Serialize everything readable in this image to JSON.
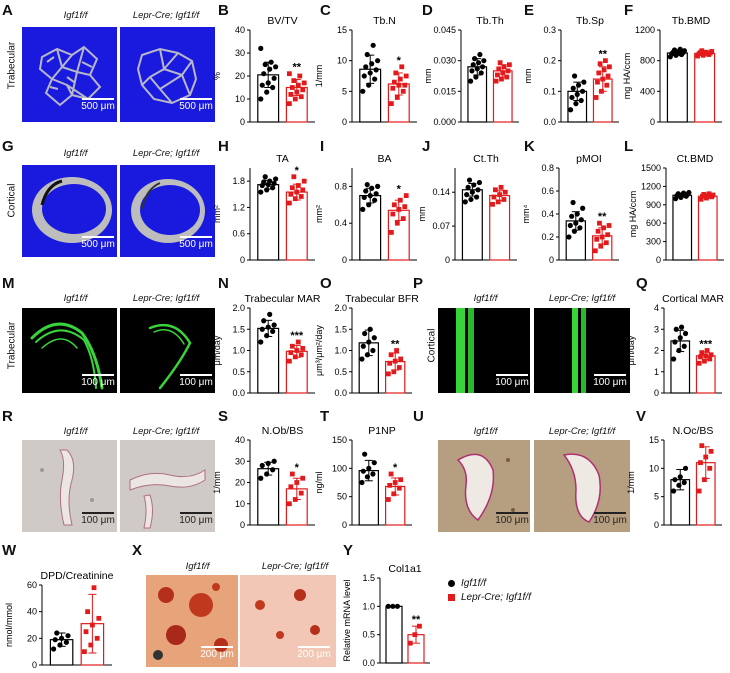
{
  "colors": {
    "wt": "#000000",
    "ko": "#e31a1c",
    "blue_bg": "#1a1adf",
    "green": "#39d439"
  },
  "panels": {
    "A": "A",
    "B": "B",
    "C": "C",
    "D": "D",
    "E": "E",
    "F": "F",
    "G": "G",
    "H": "H",
    "I": "I",
    "J": "J",
    "K": "K",
    "L": "L",
    "M": "M",
    "N": "N",
    "O": "O",
    "P": "P",
    "Q": "Q",
    "R": "R",
    "S": "S",
    "T": "T",
    "U": "U",
    "V": "V",
    "W": "W",
    "X": "X",
    "Y": "Y"
  },
  "groups": {
    "wt": "Igf1f/f",
    "ko": "Lepr-Cre; Igf1f/f"
  },
  "row_labels": {
    "trabecular": "Trabecular",
    "cortical": "Cortical"
  },
  "scales": {
    "s500": "500 μm",
    "s100": "100 μm",
    "s200": "200 μm"
  },
  "legend": {
    "wt": "Igf1f/f",
    "ko": "Lepr-Cre; Igf1f/f"
  },
  "chart_data": [
    {
      "id": "B",
      "type": "bar",
      "title": "BV/TV",
      "ylabel": "%",
      "ylim": [
        0,
        40
      ],
      "ticks": [
        "0",
        "10",
        "20",
        "30",
        "40"
      ],
      "tickvals": [
        0,
        10,
        20,
        30,
        40
      ],
      "sig": "**",
      "series": [
        {
          "values": [
            10,
            13,
            15,
            16,
            17,
            19,
            21,
            23,
            24,
            25,
            26,
            32
          ],
          "mean": 20.5,
          "sd": 5.5
        },
        {
          "values": [
            8,
            10,
            11,
            12,
            13,
            14,
            15,
            16,
            17,
            18,
            20,
            21
          ],
          "mean": 15,
          "sd": 3.5
        }
      ]
    },
    {
      "id": "C",
      "type": "bar",
      "title": "Tb.N",
      "ylabel": "1/mm",
      "ylim": [
        0,
        15
      ],
      "ticks": [
        "0",
        "5",
        "10",
        "15"
      ],
      "tickvals": [
        0,
        5,
        10,
        15
      ],
      "sig": "*",
      "series": [
        {
          "values": [
            5,
            6,
            7,
            7.5,
            8,
            8.5,
            9,
            9.5,
            10,
            11,
            12.5
          ],
          "mean": 8.6,
          "sd": 2.3
        },
        {
          "values": [
            3,
            4,
            5,
            5.5,
            6,
            6,
            6.5,
            7,
            7.5,
            8,
            9
          ],
          "mean": 6.2,
          "sd": 1.8
        }
      ]
    },
    {
      "id": "D",
      "type": "bar",
      "title": "Tb.Th",
      "ylabel": "mm",
      "ylim": [
        0,
        0.045
      ],
      "ticks": [
        "0.000",
        "0.015",
        "0.030",
        "0.045"
      ],
      "tickvals": [
        0,
        0.015,
        0.03,
        0.045
      ],
      "sig": "",
      "series": [
        {
          "values": [
            0.02,
            0.022,
            0.024,
            0.025,
            0.026,
            0.027,
            0.028,
            0.029,
            0.03,
            0.031,
            0.033
          ],
          "mean": 0.027,
          "sd": 0.004
        },
        {
          "values": [
            0.02,
            0.021,
            0.022,
            0.023,
            0.024,
            0.025,
            0.026,
            0.027,
            0.028,
            0.029
          ],
          "mean": 0.025,
          "sd": 0.003
        }
      ]
    },
    {
      "id": "E",
      "type": "bar",
      "title": "Tb.Sp",
      "ylabel": "mm",
      "ylim": [
        0,
        0.3
      ],
      "ticks": [
        "0.0",
        "0.1",
        "0.2",
        "0.3"
      ],
      "tickvals": [
        0,
        0.1,
        0.2,
        0.3
      ],
      "sig": "**",
      "series": [
        {
          "values": [
            0.04,
            0.06,
            0.07,
            0.08,
            0.09,
            0.1,
            0.11,
            0.12,
            0.13,
            0.15
          ],
          "mean": 0.1,
          "sd": 0.03
        },
        {
          "values": [
            0.08,
            0.1,
            0.12,
            0.13,
            0.14,
            0.15,
            0.16,
            0.17,
            0.18,
            0.19,
            0.2
          ],
          "mean": 0.14,
          "sd": 0.04
        }
      ]
    },
    {
      "id": "F",
      "type": "bar",
      "title": "Tb.BMD",
      "ylabel": "mg HA/ccm",
      "ylim": [
        0,
        1200
      ],
      "ticks": [
        "0",
        "400",
        "800",
        "1200"
      ],
      "tickvals": [
        0,
        400,
        800,
        1200
      ],
      "sig": "",
      "series": [
        {
          "values": [
            850,
            870,
            880,
            890,
            900,
            905,
            910,
            920,
            930,
            940,
            950
          ],
          "mean": 900,
          "sd": 35
        },
        {
          "values": [
            860,
            870,
            880,
            890,
            895,
            900,
            905,
            910,
            920,
            930
          ],
          "mean": 895,
          "sd": 25
        }
      ]
    },
    {
      "id": "H",
      "type": "bar",
      "title": "TA",
      "ylabel": "mm²",
      "ylim": [
        0,
        2.1
      ],
      "ticks": [
        "0",
        "0.6",
        "1.2",
        "1.8"
      ],
      "tickvals": [
        0,
        0.6,
        1.2,
        1.8
      ],
      "sig": "*",
      "series": [
        {
          "values": [
            1.55,
            1.6,
            1.65,
            1.7,
            1.72,
            1.75,
            1.78,
            1.8,
            1.85,
            1.9
          ],
          "mean": 1.72,
          "sd": 0.1
        },
        {
          "values": [
            1.3,
            1.4,
            1.45,
            1.5,
            1.55,
            1.6,
            1.65,
            1.7,
            1.8,
            1.9
          ],
          "mean": 1.55,
          "sd": 0.18
        }
      ]
    },
    {
      "id": "I",
      "type": "bar",
      "title": "BA",
      "ylabel": "mm²",
      "ylim": [
        0,
        1.0
      ],
      "ticks": [
        "0",
        "0.4",
        "0.8"
      ],
      "tickvals": [
        0,
        0.4,
        0.8
      ],
      "sig": "*",
      "series": [
        {
          "values": [
            0.55,
            0.6,
            0.65,
            0.68,
            0.7,
            0.72,
            0.75,
            0.78,
            0.8,
            0.82
          ],
          "mean": 0.7,
          "sd": 0.08
        },
        {
          "values": [
            0.3,
            0.4,
            0.45,
            0.5,
            0.55,
            0.58,
            0.6,
            0.65,
            0.7
          ],
          "mean": 0.54,
          "sd": 0.11
        }
      ]
    },
    {
      "id": "J",
      "type": "bar",
      "title": "Ct.Th",
      "ylabel": "mm",
      "ylim": [
        0,
        0.19
      ],
      "ticks": [
        "0",
        "0.07",
        "0.14"
      ],
      "tickvals": [
        0,
        0.07,
        0.14
      ],
      "sig": "",
      "series": [
        {
          "values": [
            0.12,
            0.125,
            0.13,
            0.135,
            0.14,
            0.145,
            0.15,
            0.155,
            0.16,
            0.165
          ],
          "mean": 0.145,
          "sd": 0.013
        },
        {
          "values": [
            0.115,
            0.12,
            0.125,
            0.13,
            0.135,
            0.14,
            0.145,
            0.15
          ],
          "mean": 0.133,
          "sd": 0.01
        }
      ]
    },
    {
      "id": "K",
      "type": "bar",
      "title": "pMOI",
      "ylabel": "mm⁴",
      "ylim": [
        0,
        0.8
      ],
      "ticks": [
        "0",
        "0.2",
        "0.4",
        "0.6",
        "0.8"
      ],
      "tickvals": [
        0,
        0.2,
        0.4,
        0.6,
        0.8
      ],
      "sig": "**",
      "series": [
        {
          "values": [
            0.2,
            0.25,
            0.28,
            0.3,
            0.32,
            0.35,
            0.38,
            0.4,
            0.45,
            0.5
          ],
          "mean": 0.34,
          "sd": 0.08
        },
        {
          "values": [
            0.08,
            0.12,
            0.15,
            0.18,
            0.2,
            0.22,
            0.25,
            0.28,
            0.3,
            0.32
          ],
          "mean": 0.21,
          "sd": 0.07
        }
      ]
    },
    {
      "id": "L",
      "type": "bar",
      "title": "Ct.BMD",
      "ylabel": "mg HA/ccm",
      "ylim": [
        0,
        1500
      ],
      "ticks": [
        "0",
        "300",
        "600",
        "900",
        "1200",
        "1500"
      ],
      "tickvals": [
        0,
        300,
        600,
        900,
        1200,
        1500
      ],
      "sig": "",
      "series": [
        {
          "values": [
            1000,
            1020,
            1040,
            1050,
            1060,
            1070,
            1080,
            1090,
            1100
          ],
          "mean": 1055,
          "sd": 30
        },
        {
          "values": [
            990,
            1010,
            1030,
            1040,
            1050,
            1060,
            1070,
            1080
          ],
          "mean": 1040,
          "sd": 30
        }
      ]
    },
    {
      "id": "N",
      "type": "bar",
      "title": "Trabecular  MAR",
      "ylabel": "μm/day",
      "ylim": [
        0,
        2.0
      ],
      "ticks": [
        "0.0",
        "0.5",
        "1.0",
        "1.5",
        "2.0"
      ],
      "tickvals": [
        0,
        0.5,
        1,
        1.5,
        2
      ],
      "sig": "***",
      "series": [
        {
          "values": [
            1.2,
            1.35,
            1.45,
            1.5,
            1.55,
            1.6,
            1.7,
            1.85
          ],
          "mean": 1.52,
          "sd": 0.19
        },
        {
          "values": [
            0.75,
            0.85,
            0.9,
            0.95,
            1.0,
            1.05,
            1.1,
            1.2
          ],
          "mean": 0.98,
          "sd": 0.14
        }
      ]
    },
    {
      "id": "O",
      "type": "bar",
      "title": "Trabecular  BFR",
      "ylabel": "μm³/μm²/day",
      "ylim": [
        0,
        2.0
      ],
      "ticks": [
        "0.0",
        "0.5",
        "1.0",
        "1.5",
        "2.0"
      ],
      "tickvals": [
        0,
        0.5,
        1,
        1.5,
        2
      ],
      "sig": "**",
      "series": [
        {
          "values": [
            0.8,
            0.9,
            1.0,
            1.1,
            1.2,
            1.3,
            1.4,
            1.5
          ],
          "mean": 1.18,
          "sd": 0.3
        },
        {
          "values": [
            0.45,
            0.5,
            0.6,
            0.7,
            0.75,
            0.8,
            0.9,
            1.0
          ],
          "mean": 0.74,
          "sd": 0.2
        }
      ]
    },
    {
      "id": "Q",
      "type": "bar",
      "title": "Cortical  MAR",
      "ylabel": "μm/day",
      "ylim": [
        0,
        4
      ],
      "ticks": [
        "0",
        "1",
        "2",
        "3",
        "4"
      ],
      "tickvals": [
        0,
        1,
        2,
        3,
        4
      ],
      "sig": "***",
      "series": [
        {
          "values": [
            1.6,
            2.0,
            2.2,
            2.4,
            2.6,
            2.8,
            3.0,
            3.1
          ],
          "mean": 2.45,
          "sd": 0.5
        },
        {
          "values": [
            1.4,
            1.5,
            1.6,
            1.7,
            1.75,
            1.8,
            1.9,
            2.0
          ],
          "mean": 1.75,
          "sd": 0.18
        }
      ]
    },
    {
      "id": "S",
      "type": "bar",
      "title": "N.Ob/BS",
      "ylabel": "1/mm",
      "ylim": [
        0,
        40
      ],
      "ticks": [
        "0",
        "10",
        "20",
        "30",
        "40"
      ],
      "tickvals": [
        0,
        10,
        20,
        30,
        40
      ],
      "sig": "*",
      "series": [
        {
          "values": [
            22,
            24,
            26,
            28,
            29,
            30
          ],
          "mean": 26.5,
          "sd": 3
        },
        {
          "values": [
            10,
            12,
            15,
            18,
            20,
            22,
            24
          ],
          "mean": 17,
          "sd": 5
        }
      ]
    },
    {
      "id": "T",
      "type": "bar",
      "title": "P1NP",
      "ylabel": "ng/ml",
      "ylim": [
        0,
        150
      ],
      "ticks": [
        "0",
        "50",
        "100",
        "150"
      ],
      "tickvals": [
        0,
        50,
        100,
        150
      ],
      "sig": "*",
      "series": [
        {
          "values": [
            75,
            85,
            90,
            95,
            100,
            110,
            125
          ],
          "mean": 96,
          "sd": 18
        },
        {
          "values": [
            45,
            55,
            65,
            70,
            75,
            80,
            90
          ],
          "mean": 68,
          "sd": 15
        }
      ]
    },
    {
      "id": "V",
      "type": "bar",
      "title": "N.Oc/BS",
      "ylabel": "1/mm",
      "ylim": [
        0,
        15
      ],
      "ticks": [
        "0",
        "5",
        "10",
        "15"
      ],
      "tickvals": [
        0,
        5,
        10,
        15
      ],
      "sig": "",
      "series": [
        {
          "values": [
            6,
            7,
            7.5,
            8,
            8.5,
            10
          ],
          "mean": 8,
          "sd": 1.8
        },
        {
          "values": [
            6,
            8,
            10,
            11,
            12,
            13,
            14
          ],
          "mean": 11,
          "sd": 2.8
        }
      ]
    },
    {
      "id": "W",
      "type": "bar",
      "title": "DPD/Creatinine",
      "ylabel": "nmol/mmol",
      "ylim": [
        0,
        60
      ],
      "ticks": [
        "0",
        "20",
        "40",
        "60"
      ],
      "tickvals": [
        0,
        20,
        40,
        60
      ],
      "sig": "",
      "series": [
        {
          "values": [
            12,
            15,
            17,
            19,
            20,
            22,
            24
          ],
          "mean": 19,
          "sd": 5
        },
        {
          "values": [
            10,
            15,
            20,
            25,
            30,
            35,
            40,
            58
          ],
          "mean": 31,
          "sd": 22
        }
      ]
    },
    {
      "id": "Y",
      "type": "bar",
      "title": "Col1a1",
      "ylabel": "Relative mRNA level",
      "ylim": [
        0,
        1.5
      ],
      "ticks": [
        "0.0",
        "0.5",
        "1.0",
        "1.5"
      ],
      "tickvals": [
        0,
        0.5,
        1,
        1.5
      ],
      "sig": "**",
      "series": [
        {
          "values": [
            1.0,
            1.0,
            1.0
          ],
          "mean": 1.0,
          "sd": 0
        },
        {
          "values": [
            0.35,
            0.5,
            0.65
          ],
          "mean": 0.5,
          "sd": 0.15
        }
      ]
    }
  ]
}
